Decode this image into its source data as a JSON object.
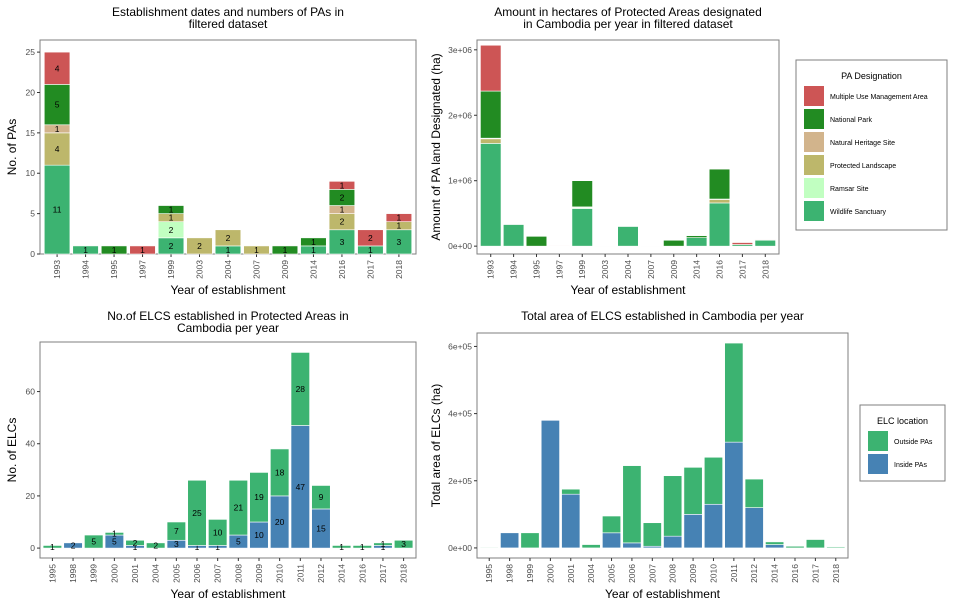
{
  "colors": {
    "Multiple Use Management Area": "#cd5555",
    "National Park": "#228b22",
    "Natural Heritage Site": "#d2b48c",
    "Protected Landscape": "#bdb76b",
    "Ramsar Site": "#c1ffc1",
    "Wildlife Sanctuary": "#3cb371",
    "Outside PAs": "#3cb371",
    "Inside PAs": "#4682b4"
  },
  "legends": [
    {
      "title": "PA Designation",
      "items": [
        "Multiple Use Management Area",
        "National Park",
        "Natural Heritage Site",
        "Protected Landscape",
        "Ramsar Site",
        "Wildlife Sanctuary"
      ]
    },
    {
      "title": "ELC location",
      "items": [
        "Outside PAs",
        "Inside PAs"
      ]
    }
  ],
  "chart_data": [
    {
      "type": "bar",
      "title": "Establishment dates and numbers of PAs in\nfiltered dataset",
      "xlabel": "Year of establishment",
      "ylabel": "No. of PAs",
      "ylim": [
        0,
        26.5
      ],
      "yticks": [
        0,
        5,
        10,
        15,
        20,
        25
      ],
      "ytick_labels": [
        "0",
        "5",
        "10",
        "15",
        "20",
        "25"
      ],
      "categories": [
        "1993",
        "1994",
        "1995",
        "1997",
        "1999",
        "2003",
        "2004",
        "2007",
        "2009",
        "2014",
        "2016",
        "2017",
        "2018"
      ],
      "series": [
        {
          "name": "Wildlife Sanctuary",
          "values": [
            11,
            1,
            0,
            0,
            2,
            0,
            1,
            0,
            0,
            1,
            3,
            1,
            3
          ]
        },
        {
          "name": "Ramsar Site",
          "values": [
            0,
            0,
            0,
            0,
            2,
            0,
            0,
            0,
            0,
            0,
            0,
            0,
            0
          ]
        },
        {
          "name": "Protected Landscape",
          "values": [
            4,
            0,
            0,
            0,
            1,
            2,
            2,
            1,
            0,
            0,
            2,
            0,
            1
          ]
        },
        {
          "name": "Natural Heritage Site",
          "values": [
            1,
            0,
            0,
            0,
            0,
            0,
            0,
            0,
            0,
            0,
            1,
            0,
            0
          ]
        },
        {
          "name": "National Park",
          "values": [
            5,
            0,
            1,
            0,
            1,
            0,
            0,
            0,
            1,
            1,
            2,
            0,
            0
          ]
        },
        {
          "name": "Multiple Use Management Area",
          "values": [
            4,
            0,
            0,
            1,
            0,
            0,
            0,
            0,
            0,
            0,
            1,
            2,
            1
          ]
        }
      ],
      "data_labels": true
    },
    {
      "type": "bar",
      "title": "Amount in hectares of Protected Areas designated\nin Cambodia per year in filtered dataset",
      "xlabel": "Year of establishment",
      "ylabel": "Amount of PA land Designated (ha)",
      "ylim": [
        -120000,
        3150000
      ],
      "yticks": [
        0,
        1000000,
        2000000,
        3000000
      ],
      "ytick_labels": [
        "0e+00",
        "1e+06",
        "2e+06",
        "3e+06"
      ],
      "categories": [
        "1993",
        "1994",
        "1995",
        "1997",
        "1999",
        "2003",
        "2004",
        "2007",
        "2009",
        "2014",
        "2016",
        "2017",
        "2018"
      ],
      "series": [
        {
          "name": "Wildlife Sanctuary",
          "values": [
            1570000,
            330000,
            0,
            0,
            575000,
            0,
            300000,
            0,
            0,
            130000,
            660000,
            25000,
            95000
          ]
        },
        {
          "name": "Ramsar Site",
          "values": [
            0,
            0,
            0,
            0,
            15000,
            0,
            0,
            0,
            0,
            0,
            0,
            0,
            0
          ]
        },
        {
          "name": "Protected Landscape",
          "values": [
            70000,
            0,
            0,
            0,
            10000,
            2000,
            0,
            2000,
            0,
            0,
            55000,
            0,
            3000
          ]
        },
        {
          "name": "Natural Heritage Site",
          "values": [
            10000,
            0,
            0,
            0,
            0,
            0,
            0,
            0,
            0,
            0,
            5000,
            0,
            0
          ]
        },
        {
          "name": "National Park",
          "values": [
            720000,
            0,
            150000,
            0,
            400000,
            0,
            0,
            0,
            90000,
            30000,
            460000,
            0,
            0
          ]
        },
        {
          "name": "Multiple Use Management Area",
          "values": [
            700000,
            0,
            0,
            3000,
            0,
            0,
            0,
            0,
            0,
            0,
            5000,
            30000,
            5000
          ]
        }
      ],
      "data_labels": false
    },
    {
      "type": "bar",
      "title": "No.of ELCS established in Protected Areas in\nCambodia per year",
      "xlabel": "Year of establishment",
      "ylabel": "No. of ELCs",
      "ylim": [
        -3.8,
        79
      ],
      "yticks": [
        0,
        20,
        40,
        60
      ],
      "ytick_labels": [
        "0",
        "20",
        "40",
        "60"
      ],
      "categories": [
        "1995",
        "1998",
        "1999",
        "2000",
        "2001",
        "2004",
        "2005",
        "2006",
        "2007",
        "2008",
        "2009",
        "2010",
        "2011",
        "2012",
        "2014",
        "2016",
        "2017",
        "2018"
      ],
      "series": [
        {
          "name": "Inside PAs",
          "values": [
            0,
            2,
            0,
            5,
            1,
            0,
            3,
            1,
            1,
            5,
            10,
            20,
            47,
            15,
            0,
            0,
            1,
            0
          ]
        },
        {
          "name": "Outside PAs",
          "values": [
            1,
            0,
            5,
            1,
            2,
            2,
            7,
            25,
            10,
            21,
            19,
            18,
            28,
            9,
            1,
            1,
            1,
            3
          ]
        }
      ],
      "data_labels": true
    },
    {
      "type": "bar",
      "title": "Total area of ELCS established in Cambodia per year",
      "xlabel": "Year of establishment",
      "ylabel": "Total area of ELCs (ha)",
      "ylim": [
        -30000,
        640000
      ],
      "yticks": [
        0,
        200000,
        400000,
        600000
      ],
      "ytick_labels": [
        "0e+00",
        "2e+05",
        "4e+05",
        "6e+05"
      ],
      "categories": [
        "1995",
        "1998",
        "1999",
        "2000",
        "2001",
        "2004",
        "2005",
        "2006",
        "2007",
        "2008",
        "2009",
        "2010",
        "2011",
        "2012",
        "2014",
        "2016",
        "2017",
        "2018"
      ],
      "series": [
        {
          "name": "Inside PAs",
          "values": [
            0,
            45000,
            0,
            380000,
            160000,
            0,
            45000,
            15000,
            5000,
            35000,
            100000,
            130000,
            315000,
            120000,
            10000,
            0,
            0,
            0
          ]
        },
        {
          "name": "Outside PAs",
          "values": [
            2000,
            0,
            45000,
            0,
            15000,
            10000,
            50000,
            230000,
            70000,
            180000,
            140000,
            140000,
            295000,
            85000,
            8000,
            5000,
            25000,
            3000
          ]
        }
      ],
      "data_labels": false
    }
  ]
}
